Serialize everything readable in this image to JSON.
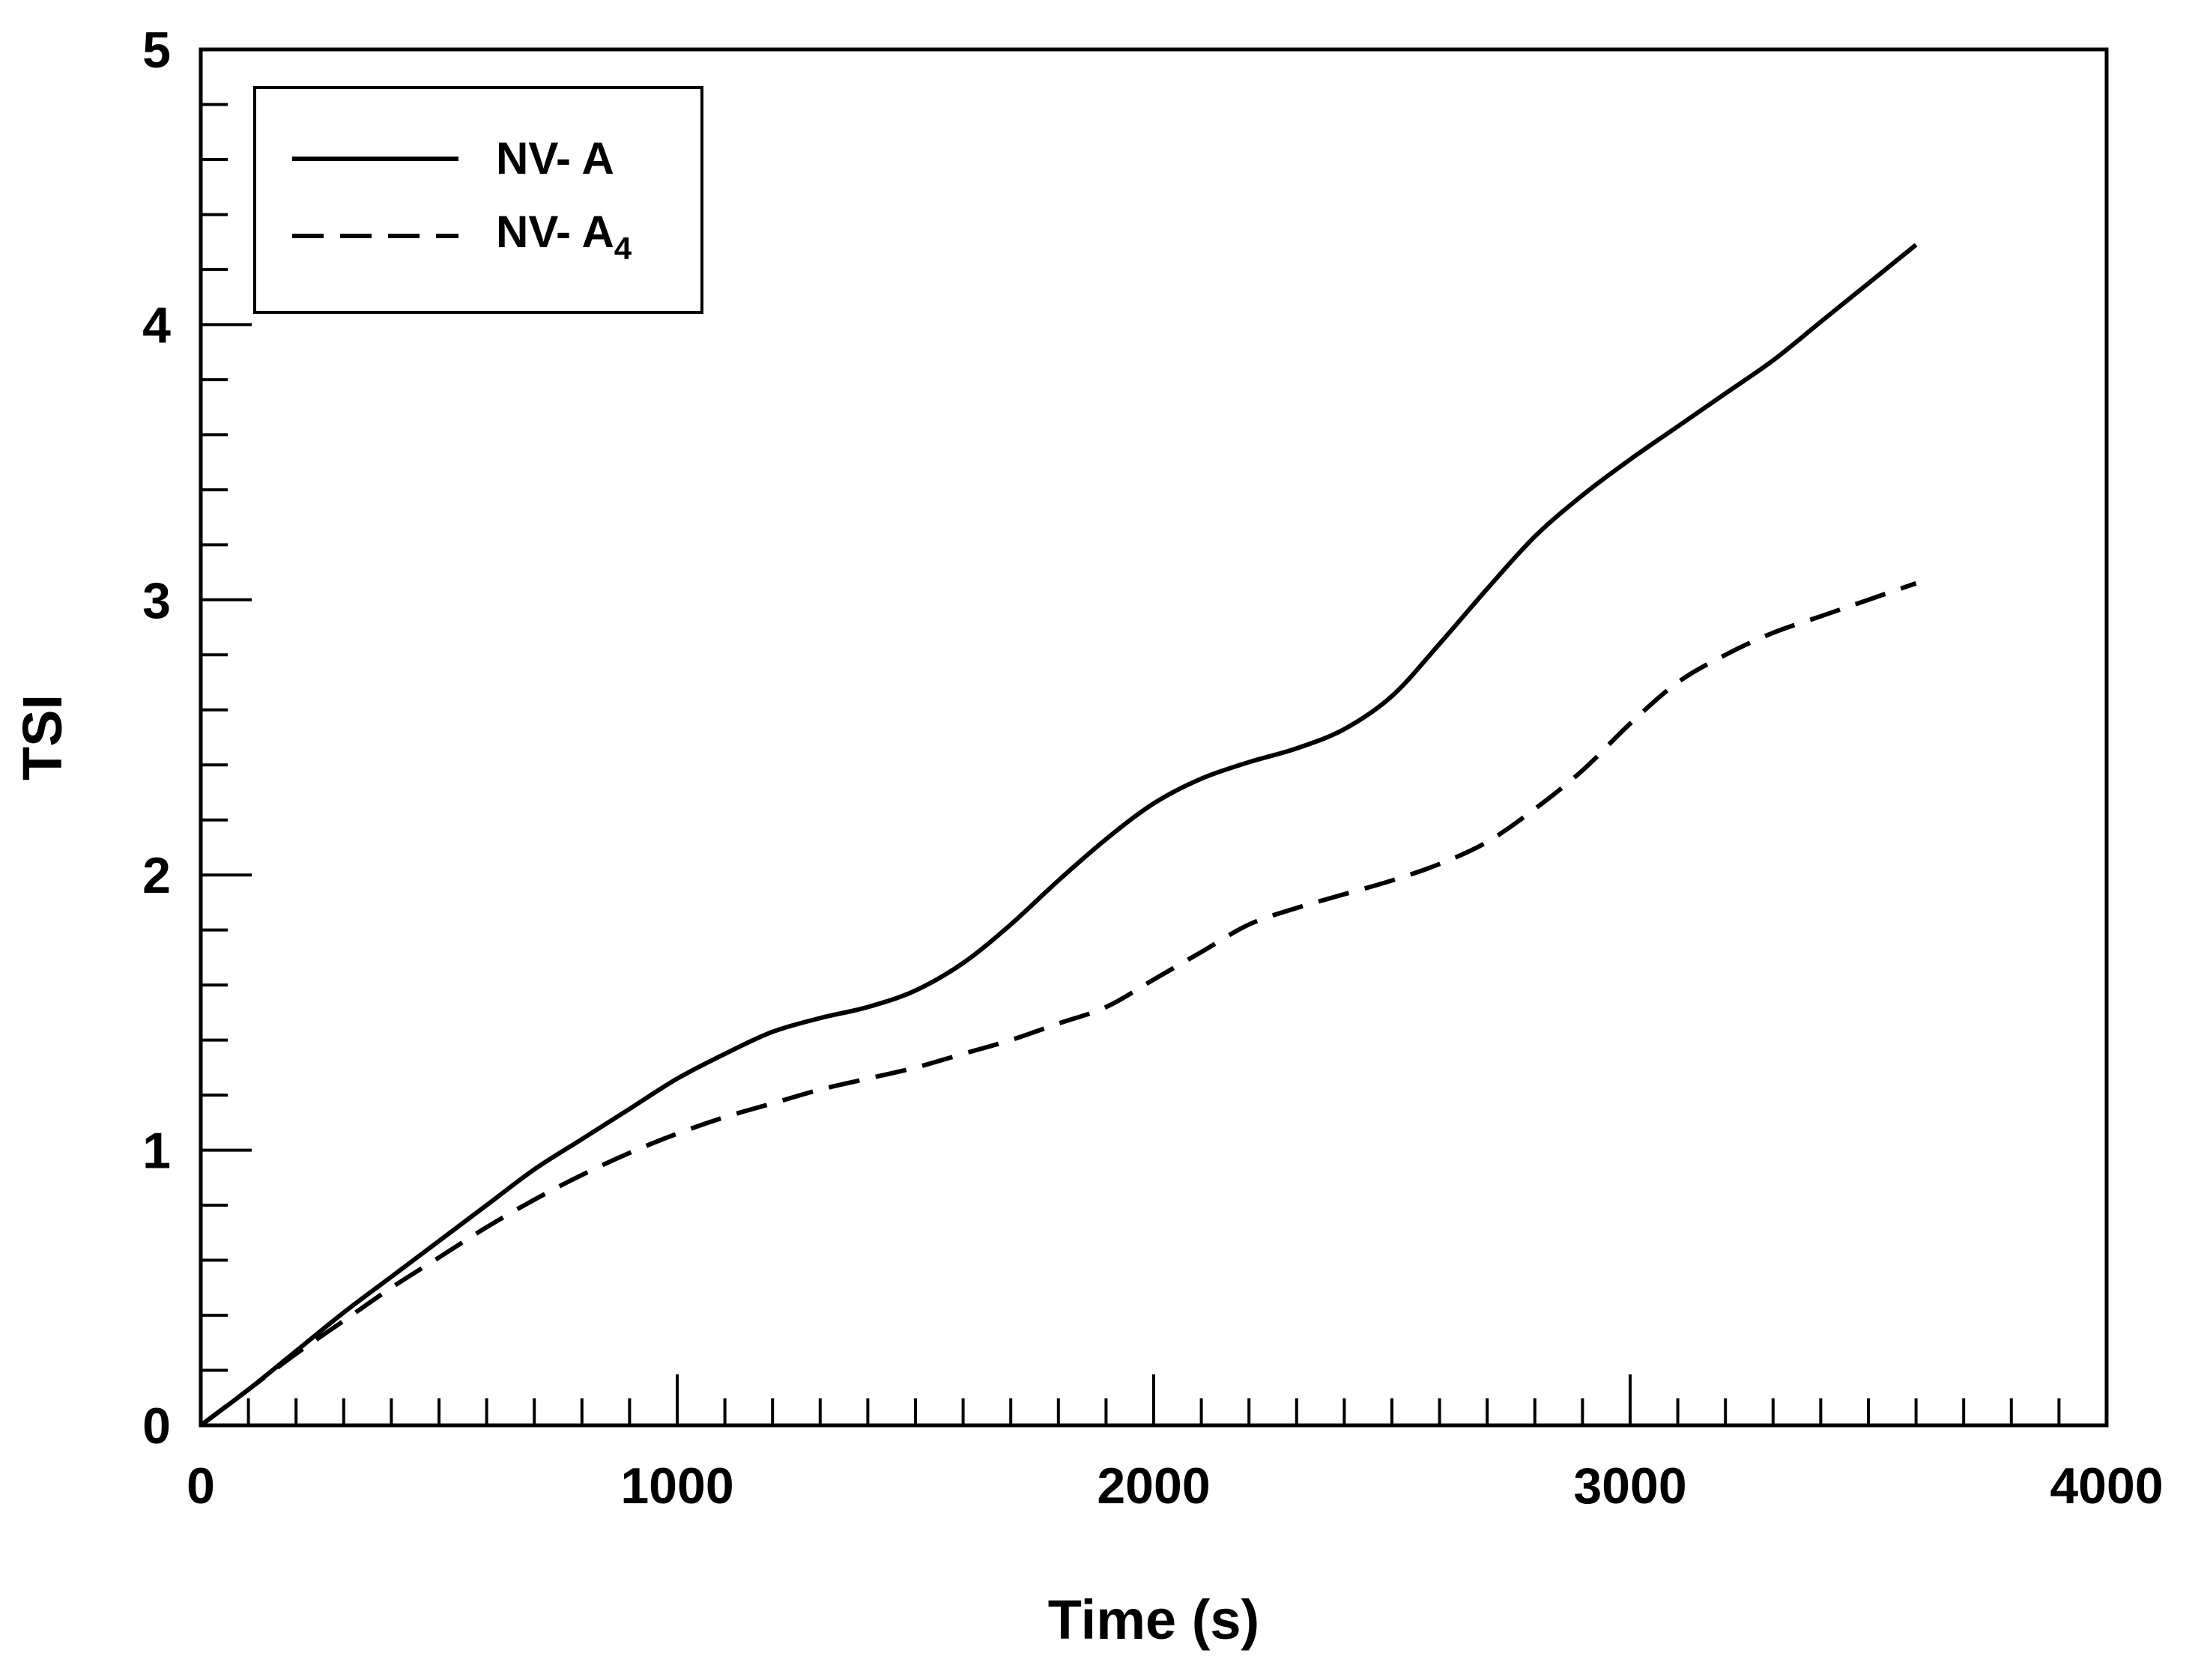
{
  "chart_data": {
    "type": "line",
    "title": "",
    "xlabel": "Time (s)",
    "ylabel": "TSI",
    "xlim": [
      0,
      4000
    ],
    "ylim": [
      0,
      5
    ],
    "xticks": [
      0,
      1000,
      2000,
      3000,
      4000
    ],
    "yticks": [
      0,
      1,
      2,
      3,
      4,
      5
    ],
    "x_tick_labels": [
      "0",
      "1000",
      "2000",
      "3000",
      "4000"
    ],
    "y_tick_labels": [
      "0",
      "1",
      "2",
      "3",
      "4",
      "5"
    ],
    "x_minor_step": 100,
    "y_minor_step": 0.2,
    "grid": false,
    "legend_position": "top-left",
    "series": [
      {
        "name": "NV- A",
        "legend_main": "NV- A",
        "legend_sub": "",
        "style": "solid",
        "color": "#000000",
        "x": [
          0,
          100,
          200,
          300,
          400,
          500,
          600,
          700,
          800,
          900,
          1000,
          1100,
          1200,
          1300,
          1400,
          1500,
          1600,
          1700,
          1800,
          1900,
          2000,
          2100,
          2200,
          2300,
          2400,
          2500,
          2600,
          2700,
          2800,
          2900,
          3000,
          3100,
          3200,
          3300,
          3400,
          3500,
          3600
        ],
        "y": [
          0,
          0.13,
          0.27,
          0.41,
          0.54,
          0.67,
          0.8,
          0.93,
          1.04,
          1.15,
          1.26,
          1.35,
          1.43,
          1.48,
          1.52,
          1.58,
          1.68,
          1.82,
          1.98,
          2.13,
          2.26,
          2.35,
          2.41,
          2.46,
          2.53,
          2.65,
          2.84,
          3.04,
          3.23,
          3.38,
          3.51,
          3.63,
          3.75,
          3.87,
          4.01,
          4.15,
          4.29
        ]
      },
      {
        "name": "NV- A4",
        "legend_main": "NV- A",
        "legend_sub": "4",
        "style": "dashed",
        "color": "#000000",
        "x": [
          0,
          100,
          200,
          300,
          400,
          500,
          600,
          700,
          800,
          900,
          1000,
          1100,
          1200,
          1300,
          1400,
          1500,
          1600,
          1700,
          1800,
          1900,
          2000,
          2100,
          2200,
          2300,
          2400,
          2500,
          2600,
          2700,
          2800,
          2900,
          3000,
          3100,
          3200,
          3300,
          3400,
          3500,
          3600
        ],
        "y": [
          0,
          0.13,
          0.26,
          0.38,
          0.5,
          0.61,
          0.72,
          0.82,
          0.91,
          0.99,
          1.06,
          1.12,
          1.17,
          1.22,
          1.26,
          1.3,
          1.35,
          1.4,
          1.46,
          1.52,
          1.62,
          1.72,
          1.82,
          1.88,
          1.93,
          1.98,
          2.04,
          2.12,
          2.24,
          2.38,
          2.55,
          2.7,
          2.8,
          2.88,
          2.94,
          3.0,
          3.06
        ]
      }
    ]
  }
}
